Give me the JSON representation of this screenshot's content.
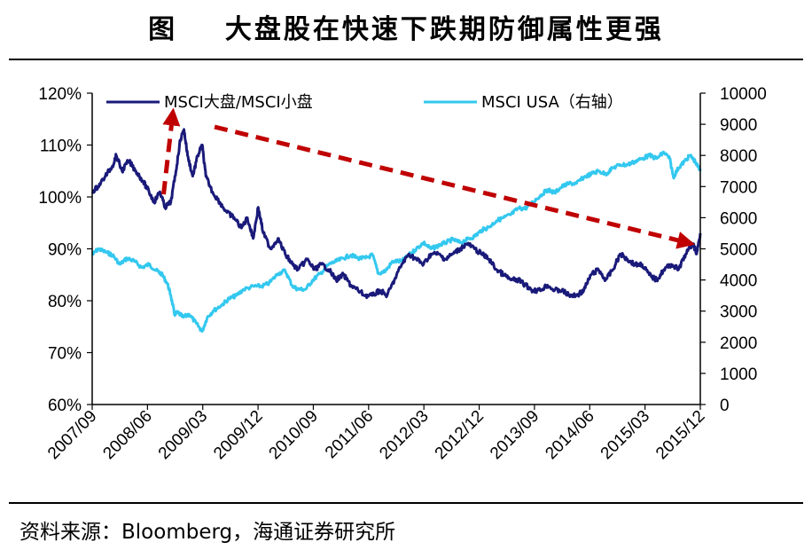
{
  "title": "图    大盘股在快速下跌期防御属性更强",
  "source": "资料来源：Bloomberg，海通证券研究所",
  "chart_data": {
    "type": "line",
    "title": "图    大盘股在快速下跌期防御属性更强",
    "x_ticks": [
      "2007/09",
      "2008/06",
      "2009/03",
      "2009/12",
      "2010/09",
      "2011/06",
      "2012/03",
      "2012/12",
      "2013/09",
      "2014/06",
      "2015/03",
      "2015/12"
    ],
    "x_range": [
      2007.67,
      2016.02
    ],
    "y_left": {
      "ylim": [
        60,
        120
      ],
      "ticks": [
        "60%",
        "70%",
        "80%",
        "90%",
        "100%",
        "110%",
        "120%"
      ]
    },
    "y_right": {
      "ylim": [
        0,
        10000
      ],
      "ticks": [
        "0",
        "1000",
        "2000",
        "3000",
        "4000",
        "5000",
        "6000",
        "7000",
        "8000",
        "9000",
        "10000"
      ]
    },
    "series": [
      {
        "name": "MSCI大盘/MSCI小盘",
        "axis": "left",
        "color": "#1a1a7a",
        "points": [
          [
            2007.67,
            101
          ],
          [
            2007.75,
            102
          ],
          [
            2007.85,
            104
          ],
          [
            2007.95,
            106
          ],
          [
            2008.0,
            108
          ],
          [
            2008.08,
            105
          ],
          [
            2008.17,
            107
          ],
          [
            2008.27,
            105
          ],
          [
            2008.37,
            103
          ],
          [
            2008.45,
            101
          ],
          [
            2008.52,
            99
          ],
          [
            2008.6,
            101
          ],
          [
            2008.67,
            98
          ],
          [
            2008.75,
            99
          ],
          [
            2008.82,
            105
          ],
          [
            2008.88,
            111
          ],
          [
            2008.93,
            113
          ],
          [
            2008.98,
            108
          ],
          [
            2009.05,
            104
          ],
          [
            2009.12,
            108
          ],
          [
            2009.18,
            110
          ],
          [
            2009.23,
            104
          ],
          [
            2009.32,
            101
          ],
          [
            2009.42,
            99
          ],
          [
            2009.52,
            97
          ],
          [
            2009.62,
            96
          ],
          [
            2009.72,
            94
          ],
          [
            2009.8,
            96
          ],
          [
            2009.88,
            92
          ],
          [
            2009.95,
            98
          ],
          [
            2010.02,
            93
          ],
          [
            2010.12,
            90
          ],
          [
            2010.22,
            92
          ],
          [
            2010.32,
            89
          ],
          [
            2010.42,
            87
          ],
          [
            2010.5,
            86
          ],
          [
            2010.62,
            88
          ],
          [
            2010.72,
            86
          ],
          [
            2010.82,
            87
          ],
          [
            2010.92,
            86
          ],
          [
            2011.02,
            84
          ],
          [
            2011.12,
            85
          ],
          [
            2011.22,
            83
          ],
          [
            2011.32,
            82
          ],
          [
            2011.42,
            81
          ],
          [
            2011.52,
            81
          ],
          [
            2011.62,
            82
          ],
          [
            2011.72,
            81
          ],
          [
            2011.82,
            84
          ],
          [
            2011.92,
            87
          ],
          [
            2012.02,
            89
          ],
          [
            2012.12,
            88
          ],
          [
            2012.22,
            87
          ],
          [
            2012.32,
            89
          ],
          [
            2012.42,
            89
          ],
          [
            2012.52,
            88
          ],
          [
            2012.62,
            89
          ],
          [
            2012.72,
            90
          ],
          [
            2012.82,
            91
          ],
          [
            2012.92,
            90
          ],
          [
            2013.02,
            89
          ],
          [
            2013.12,
            88
          ],
          [
            2013.22,
            86
          ],
          [
            2013.32,
            85
          ],
          [
            2013.42,
            84
          ],
          [
            2013.52,
            84
          ],
          [
            2013.62,
            83
          ],
          [
            2013.72,
            82
          ],
          [
            2013.82,
            82
          ],
          [
            2013.92,
            83
          ],
          [
            2014.02,
            82
          ],
          [
            2014.12,
            82
          ],
          [
            2014.22,
            81
          ],
          [
            2014.32,
            81
          ],
          [
            2014.42,
            82
          ],
          [
            2014.52,
            85
          ],
          [
            2014.62,
            86
          ],
          [
            2014.72,
            84
          ],
          [
            2014.82,
            86
          ],
          [
            2014.92,
            89
          ],
          [
            2015.02,
            88
          ],
          [
            2015.12,
            87
          ],
          [
            2015.22,
            87
          ],
          [
            2015.32,
            85
          ],
          [
            2015.42,
            84
          ],
          [
            2015.52,
            86
          ],
          [
            2015.62,
            87
          ],
          [
            2015.72,
            86
          ],
          [
            2015.82,
            89
          ],
          [
            2015.92,
            91
          ],
          [
            2015.97,
            89
          ],
          [
            2016.02,
            93
          ]
        ]
      },
      {
        "name": "MSCI USA（右轴）",
        "axis": "right",
        "color": "#33c8ef",
        "points": [
          [
            2007.67,
            4800
          ],
          [
            2007.75,
            5000
          ],
          [
            2007.85,
            4900
          ],
          [
            2007.95,
            4800
          ],
          [
            2008.05,
            4500
          ],
          [
            2008.15,
            4700
          ],
          [
            2008.25,
            4600
          ],
          [
            2008.35,
            4400
          ],
          [
            2008.45,
            4500
          ],
          [
            2008.55,
            4300
          ],
          [
            2008.62,
            4200
          ],
          [
            2008.7,
            3900
          ],
          [
            2008.75,
            3500
          ],
          [
            2008.8,
            2900
          ],
          [
            2008.85,
            2950
          ],
          [
            2008.92,
            2800
          ],
          [
            2009.0,
            2900
          ],
          [
            2009.1,
            2600
          ],
          [
            2009.18,
            2350
          ],
          [
            2009.25,
            2800
          ],
          [
            2009.33,
            3000
          ],
          [
            2009.45,
            3200
          ],
          [
            2009.55,
            3400
          ],
          [
            2009.65,
            3500
          ],
          [
            2009.75,
            3700
          ],
          [
            2009.9,
            3800
          ],
          [
            2010.0,
            3800
          ],
          [
            2010.1,
            3900
          ],
          [
            2010.22,
            4200
          ],
          [
            2010.32,
            4300
          ],
          [
            2010.42,
            3800
          ],
          [
            2010.5,
            3700
          ],
          [
            2010.6,
            3700
          ],
          [
            2010.7,
            4000
          ],
          [
            2010.8,
            4200
          ],
          [
            2010.92,
            4500
          ],
          [
            2011.02,
            4600
          ],
          [
            2011.12,
            4700
          ],
          [
            2011.22,
            4800
          ],
          [
            2011.32,
            4700
          ],
          [
            2011.42,
            4700
          ],
          [
            2011.52,
            4800
          ],
          [
            2011.6,
            4200
          ],
          [
            2011.7,
            4300
          ],
          [
            2011.8,
            4600
          ],
          [
            2011.92,
            4600
          ],
          [
            2012.02,
            4800
          ],
          [
            2012.12,
            5000
          ],
          [
            2012.22,
            5200
          ],
          [
            2012.32,
            5000
          ],
          [
            2012.42,
            5100
          ],
          [
            2012.52,
            5200
          ],
          [
            2012.62,
            5300
          ],
          [
            2012.72,
            5200
          ],
          [
            2012.82,
            5300
          ],
          [
            2012.92,
            5400
          ],
          [
            2013.02,
            5600
          ],
          [
            2013.12,
            5700
          ],
          [
            2013.22,
            5900
          ],
          [
            2013.32,
            6000
          ],
          [
            2013.42,
            6100
          ],
          [
            2013.52,
            6300
          ],
          [
            2013.62,
            6300
          ],
          [
            2013.72,
            6500
          ],
          [
            2013.82,
            6700
          ],
          [
            2013.92,
            6900
          ],
          [
            2014.02,
            6800
          ],
          [
            2014.12,
            7000
          ],
          [
            2014.22,
            7100
          ],
          [
            2014.32,
            7100
          ],
          [
            2014.42,
            7300
          ],
          [
            2014.52,
            7400
          ],
          [
            2014.62,
            7500
          ],
          [
            2014.72,
            7400
          ],
          [
            2014.82,
            7600
          ],
          [
            2014.92,
            7700
          ],
          [
            2015.02,
            7700
          ],
          [
            2015.12,
            7800
          ],
          [
            2015.22,
            7900
          ],
          [
            2015.32,
            8000
          ],
          [
            2015.42,
            7900
          ],
          [
            2015.52,
            8100
          ],
          [
            2015.6,
            7900
          ],
          [
            2015.65,
            7300
          ],
          [
            2015.72,
            7600
          ],
          [
            2015.8,
            7800
          ],
          [
            2015.88,
            8000
          ],
          [
            2015.95,
            7800
          ],
          [
            2016.02,
            7500
          ]
        ]
      }
    ],
    "annotations": [
      {
        "type": "arrow",
        "style": "dashed",
        "color": "#c00000",
        "from": [
          2008.65,
          100.5
        ],
        "to": [
          2008.78,
          116.5
        ],
        "axis": "left"
      },
      {
        "type": "arrow",
        "style": "dashed",
        "color": "#c00000",
        "from": [
          2009.35,
          113.5
        ],
        "to": [
          2015.9,
          91
        ],
        "axis": "left"
      }
    ],
    "legend": {
      "position": "top",
      "entries": [
        "MSCI大盘/MSCI小盘",
        "MSCI USA（右轴）"
      ]
    }
  }
}
